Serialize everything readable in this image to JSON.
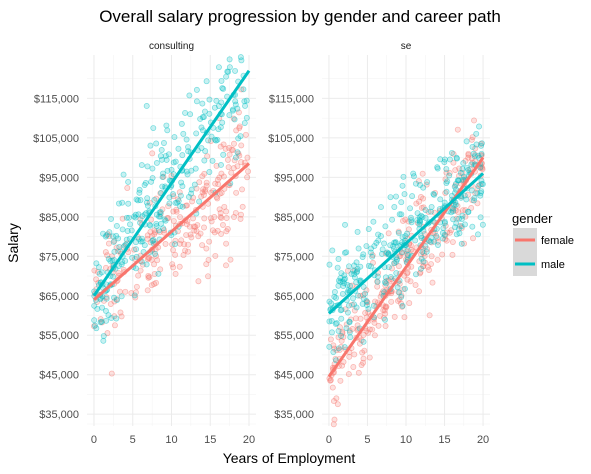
{
  "chart_data": {
    "type": "scatter",
    "title": "Overall salary progression by gender and career path",
    "xlabel": "Years of Employment",
    "ylabel": "Salary",
    "xlim": [
      -0.9,
      20.9
    ],
    "ylim": [
      32000,
      126000
    ],
    "x_ticks": [
      0,
      5,
      10,
      15,
      20
    ],
    "x_tick_labels": [
      "0",
      "5",
      "10",
      "15",
      "20"
    ],
    "y_ticks": [
      35000,
      45000,
      55000,
      65000,
      75000,
      85000,
      95000,
      105000,
      115000
    ],
    "y_tick_labels": [
      "$35,000",
      "$45,000",
      "$55,000",
      "$65,000",
      "$75,000",
      "$85,000",
      "$95,000",
      "$105,000",
      "$115,000"
    ],
    "grid": true,
    "legend": {
      "title": "gender",
      "position": "right",
      "entries": [
        {
          "name": "female",
          "color": "#f8766d"
        },
        {
          "name": "male",
          "color": "#00bfc4"
        }
      ]
    },
    "facets": [
      {
        "label": "consulting",
        "series": [
          {
            "name": "female",
            "color": "#f8766d",
            "trend": {
              "x": [
                0,
                20
              ],
              "y": [
                64000,
                98500
              ]
            },
            "spread": 8000,
            "points": 260
          },
          {
            "name": "male",
            "color": "#00bfc4",
            "trend": {
              "x": [
                0,
                20
              ],
              "y": [
                65000,
                122000
              ]
            },
            "spread": 8500,
            "points": 300
          }
        ]
      },
      {
        "label": "se",
        "series": [
          {
            "name": "female",
            "color": "#f8766d",
            "trend": {
              "x": [
                0,
                20
              ],
              "y": [
                44500,
                100000
              ]
            },
            "spread": 6500,
            "points": 300
          },
          {
            "name": "male",
            "color": "#00bfc4",
            "trend": {
              "x": [
                0,
                20
              ],
              "y": [
                60500,
                96000
              ]
            },
            "spread": 6500,
            "points": 340
          }
        ]
      }
    ]
  }
}
